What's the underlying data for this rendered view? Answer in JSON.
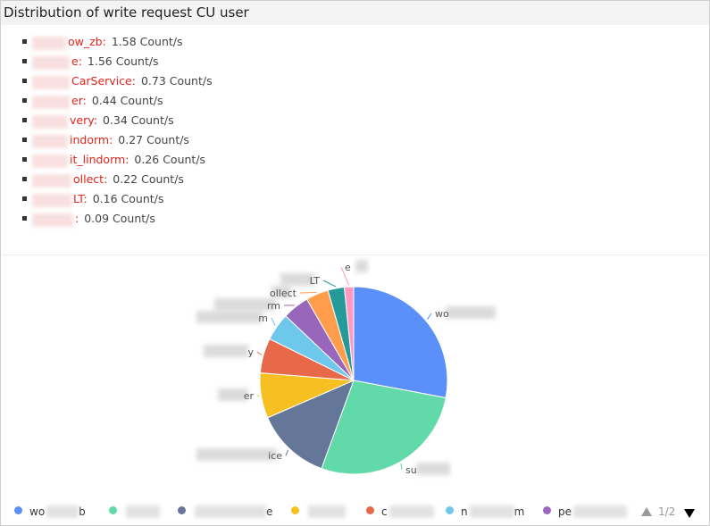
{
  "title": "Distribution of write request CU user",
  "summary": [
    {
      "name": "ow_zb",
      "value": "1.58 Count/s"
    },
    {
      "name": "e",
      "value": "1.56 Count/s"
    },
    {
      "name": "CarService",
      "value": "0.73 Count/s"
    },
    {
      "name": "er",
      "value": "0.44 Count/s"
    },
    {
      "name": "very",
      "value": "0.34 Count/s"
    },
    {
      "name": "indorm",
      "value": "0.27 Count/s"
    },
    {
      "name": "it_lindorm",
      "value": "0.26 Count/s"
    },
    {
      "name": "ollect",
      "value": "0.22 Count/s"
    },
    {
      "name": "LT",
      "value": "0.16 Count/s"
    },
    {
      "name": "",
      "value": "0.09 Count/s"
    }
  ],
  "pager": {
    "text": "1/2"
  },
  "chart_data": {
    "type": "pie",
    "series": [
      {
        "name": "wo",
        "value": 1.58,
        "color": "#5b8ff9"
      },
      {
        "name": "su",
        "value": 1.56,
        "color": "#61d9a8"
      },
      {
        "name": "ice",
        "value": 0.73,
        "color": "#657798"
      },
      {
        "name": "er",
        "value": 0.44,
        "color": "#f6c022"
      },
      {
        "name": "y",
        "value": 0.34,
        "color": "#e8684a"
      },
      {
        "name": "m",
        "value": 0.27,
        "color": "#6dc8ec"
      },
      {
        "name": "rm",
        "value": 0.26,
        "color": "#9867bc"
      },
      {
        "name": "ollect",
        "value": 0.22,
        "color": "#ff9d4d"
      },
      {
        "name": "LT",
        "value": 0.16,
        "color": "#269a99"
      },
      {
        "name": "e",
        "value": 0.09,
        "color": "#ff99c3"
      }
    ],
    "legend": [
      {
        "label": "wo",
        "tail": "b",
        "color": "#5b8ff9"
      },
      {
        "label": "",
        "tail": "",
        "color": "#61d9a8"
      },
      {
        "label": "",
        "tail": "e",
        "color": "#657798"
      },
      {
        "label": "",
        "tail": "",
        "color": "#f6c022"
      },
      {
        "label": "c",
        "tail": "",
        "color": "#e8684a"
      },
      {
        "label": "n",
        "tail": "m",
        "color": "#6dc8ec"
      },
      {
        "label": "pe",
        "tail": "",
        "color": "#9867bc"
      }
    ],
    "legend_position": "bottom"
  }
}
